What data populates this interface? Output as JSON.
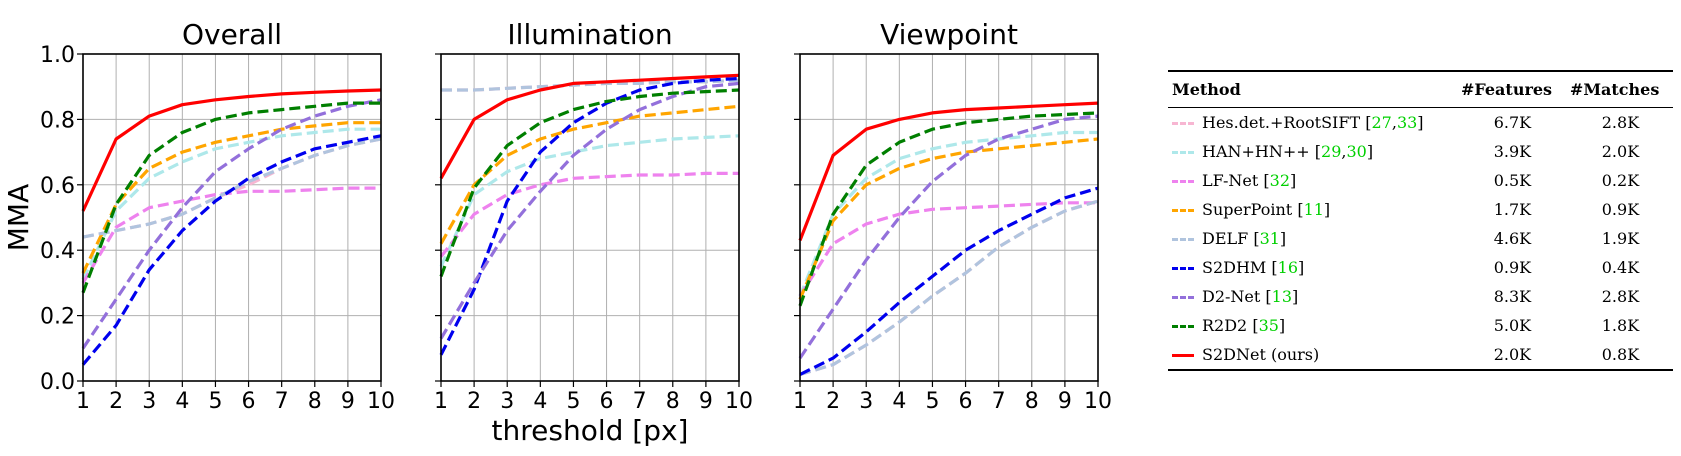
{
  "chart_data": [
    {
      "type": "line",
      "title": "Overall",
      "x": [
        1,
        2,
        3,
        4,
        5,
        6,
        7,
        8,
        9,
        10
      ],
      "xlim": [
        1,
        10
      ],
      "ylim": [
        0.0,
        1.0
      ],
      "ylabel": "MMA",
      "xlabel": "",
      "grid": true,
      "xticks": [
        "1",
        "2",
        "3",
        "4",
        "5",
        "6",
        "7",
        "8",
        "9",
        "10"
      ],
      "yticks": [
        "0.0",
        "0.2",
        "0.4",
        "0.6",
        "0.8",
        "1.0"
      ],
      "series": [
        {
          "name": "Hes.det.+RootSIFT",
          "color": "#f7b6d2",
          "dashed": true,
          "values": [
            0.44,
            0.46,
            0.48,
            0.51,
            0.56,
            0.6,
            0.65,
            0.69,
            0.72,
            0.74
          ]
        },
        {
          "name": "HAN+HN++",
          "color": "#aee8ea",
          "dashed": true,
          "values": [
            0.31,
            0.52,
            0.62,
            0.67,
            0.71,
            0.73,
            0.75,
            0.76,
            0.77,
            0.77
          ]
        },
        {
          "name": "LF-Net",
          "color": "#ee82ee",
          "dashed": true,
          "values": [
            0.3,
            0.47,
            0.53,
            0.55,
            0.57,
            0.58,
            0.58,
            0.585,
            0.59,
            0.59
          ]
        },
        {
          "name": "SuperPoint",
          "color": "#ffa500",
          "dashed": true,
          "values": [
            0.33,
            0.54,
            0.65,
            0.7,
            0.73,
            0.75,
            0.77,
            0.78,
            0.79,
            0.79
          ]
        },
        {
          "name": "DELF",
          "color": "#b0c4de",
          "dashed": true,
          "values": [
            0.44,
            0.46,
            0.48,
            0.51,
            0.56,
            0.61,
            0.65,
            0.69,
            0.72,
            0.74
          ]
        },
        {
          "name": "S2DHM",
          "color": "#0000ee",
          "dashed": true,
          "values": [
            0.05,
            0.17,
            0.34,
            0.46,
            0.55,
            0.62,
            0.67,
            0.71,
            0.73,
            0.75
          ]
        },
        {
          "name": "D2-Net",
          "color": "#9370db",
          "dashed": true,
          "values": [
            0.1,
            0.25,
            0.4,
            0.53,
            0.64,
            0.71,
            0.77,
            0.81,
            0.84,
            0.86
          ]
        },
        {
          "name": "R2D2",
          "color": "#007f00",
          "dashed": true,
          "values": [
            0.27,
            0.54,
            0.69,
            0.76,
            0.8,
            0.82,
            0.83,
            0.84,
            0.85,
            0.85
          ]
        },
        {
          "name": "S2DNet (ours)",
          "color": "#ff0000",
          "dashed": false,
          "values": [
            0.52,
            0.74,
            0.81,
            0.845,
            0.86,
            0.87,
            0.878,
            0.883,
            0.887,
            0.89
          ]
        }
      ]
    },
    {
      "type": "line",
      "title": "Illumination",
      "x": [
        1,
        2,
        3,
        4,
        5,
        6,
        7,
        8,
        9,
        10
      ],
      "xlim": [
        1,
        10
      ],
      "ylim": [
        0.0,
        1.0
      ],
      "ylabel": "",
      "xlabel": "threshold [px]",
      "grid": true,
      "xticks": [
        "1",
        "2",
        "3",
        "4",
        "5",
        "6",
        "7",
        "8",
        "9",
        "10"
      ],
      "series": [
        {
          "name": "Hes.det.+RootSIFT",
          "color": "#f7b6d2",
          "dashed": true,
          "values": [
            0.89,
            0.89,
            0.895,
            0.9,
            0.905,
            0.91,
            0.91,
            0.915,
            0.915,
            0.92
          ]
        },
        {
          "name": "HAN+HN++",
          "color": "#aee8ea",
          "dashed": true,
          "values": [
            0.35,
            0.57,
            0.64,
            0.68,
            0.7,
            0.72,
            0.73,
            0.74,
            0.745,
            0.75
          ]
        },
        {
          "name": "LF-Net",
          "color": "#ee82ee",
          "dashed": true,
          "values": [
            0.38,
            0.51,
            0.57,
            0.6,
            0.62,
            0.625,
            0.63,
            0.63,
            0.635,
            0.635
          ]
        },
        {
          "name": "SuperPoint",
          "color": "#ffa500",
          "dashed": true,
          "values": [
            0.42,
            0.6,
            0.69,
            0.74,
            0.77,
            0.79,
            0.81,
            0.82,
            0.83,
            0.84
          ]
        },
        {
          "name": "DELF",
          "color": "#b0c4de",
          "dashed": true,
          "values": [
            0.89,
            0.89,
            0.895,
            0.9,
            0.905,
            0.91,
            0.91,
            0.915,
            0.915,
            0.92
          ]
        },
        {
          "name": "S2DHM",
          "color": "#0000ee",
          "dashed": true,
          "values": [
            0.08,
            0.28,
            0.55,
            0.7,
            0.79,
            0.85,
            0.89,
            0.91,
            0.92,
            0.925
          ]
        },
        {
          "name": "D2-Net",
          "color": "#9370db",
          "dashed": true,
          "values": [
            0.13,
            0.3,
            0.46,
            0.58,
            0.69,
            0.77,
            0.83,
            0.87,
            0.9,
            0.91
          ]
        },
        {
          "name": "R2D2",
          "color": "#007f00",
          "dashed": true,
          "values": [
            0.32,
            0.59,
            0.72,
            0.79,
            0.83,
            0.855,
            0.87,
            0.88,
            0.885,
            0.89
          ]
        },
        {
          "name": "S2DNet (ours)",
          "color": "#ff0000",
          "dashed": false,
          "values": [
            0.62,
            0.8,
            0.86,
            0.89,
            0.91,
            0.915,
            0.92,
            0.925,
            0.93,
            0.935
          ]
        }
      ]
    },
    {
      "type": "line",
      "title": "Viewpoint",
      "x": [
        1,
        2,
        3,
        4,
        5,
        6,
        7,
        8,
        9,
        10
      ],
      "xlim": [
        1,
        10
      ],
      "ylim": [
        0.0,
        1.0
      ],
      "ylabel": "",
      "xlabel": "",
      "grid": true,
      "xticks": [
        "1",
        "2",
        "3",
        "4",
        "5",
        "6",
        "7",
        "8",
        "9",
        "10"
      ],
      "series": [
        {
          "name": "Hes.det.+RootSIFT",
          "color": "#f7b6d2",
          "dashed": true,
          "values": [
            0.02,
            0.05,
            0.11,
            0.18,
            0.26,
            0.33,
            0.41,
            0.47,
            0.52,
            0.55
          ]
        },
        {
          "name": "HAN+HN++",
          "color": "#aee8ea",
          "dashed": true,
          "values": [
            0.26,
            0.51,
            0.62,
            0.68,
            0.71,
            0.73,
            0.74,
            0.75,
            0.76,
            0.76
          ]
        },
        {
          "name": "LF-Net",
          "color": "#ee82ee",
          "dashed": true,
          "values": [
            0.26,
            0.42,
            0.48,
            0.51,
            0.525,
            0.53,
            0.535,
            0.54,
            0.545,
            0.545
          ]
        },
        {
          "name": "SuperPoint",
          "color": "#ffa500",
          "dashed": true,
          "values": [
            0.25,
            0.49,
            0.6,
            0.65,
            0.68,
            0.7,
            0.71,
            0.72,
            0.73,
            0.74
          ]
        },
        {
          "name": "DELF",
          "color": "#b0c4de",
          "dashed": true,
          "values": [
            0.02,
            0.05,
            0.11,
            0.18,
            0.26,
            0.33,
            0.41,
            0.47,
            0.52,
            0.55
          ]
        },
        {
          "name": "S2DHM",
          "color": "#0000ee",
          "dashed": true,
          "values": [
            0.02,
            0.07,
            0.15,
            0.24,
            0.32,
            0.4,
            0.46,
            0.51,
            0.56,
            0.59
          ]
        },
        {
          "name": "D2-Net",
          "color": "#9370db",
          "dashed": true,
          "values": [
            0.07,
            0.22,
            0.37,
            0.5,
            0.61,
            0.69,
            0.74,
            0.77,
            0.8,
            0.81
          ]
        },
        {
          "name": "R2D2",
          "color": "#007f00",
          "dashed": true,
          "values": [
            0.23,
            0.51,
            0.66,
            0.73,
            0.77,
            0.79,
            0.8,
            0.81,
            0.815,
            0.82
          ]
        },
        {
          "name": "S2DNet (ours)",
          "color": "#ff0000",
          "dashed": false,
          "values": [
            0.43,
            0.69,
            0.77,
            0.8,
            0.82,
            0.83,
            0.835,
            0.84,
            0.845,
            0.85
          ]
        }
      ]
    }
  ],
  "table": {
    "headers": {
      "method": "Method",
      "features": "#Features",
      "matches": "#Matches"
    },
    "rows": [
      {
        "method": "Hes.det.+RootSIFT",
        "cite_open": " [",
        "cite_a": "27",
        "cite_sep": ",",
        "cite_b": "33",
        "cite_close": "]",
        "features": "6.7K",
        "matches": "2.8K",
        "color": "#f7b6d2"
      },
      {
        "method": "HAN+HN++",
        "cite_open": " [",
        "cite_a": "29",
        "cite_sep": ",",
        "cite_b": "30",
        "cite_close": "]",
        "features": "3.9K",
        "matches": "2.0K",
        "color": "#aee8ea"
      },
      {
        "method": "LF-Net",
        "cite_open": " [",
        "cite_a": "32",
        "cite_sep": "",
        "cite_b": "",
        "cite_close": "]",
        "features": "0.5K",
        "matches": "0.2K",
        "color": "#ee82ee"
      },
      {
        "method": "SuperPoint",
        "cite_open": " [",
        "cite_a": "11",
        "cite_sep": "",
        "cite_b": "",
        "cite_close": "]",
        "features": "1.7K",
        "matches": "0.9K",
        "color": "#ffa500"
      },
      {
        "method": "DELF",
        "cite_open": " [",
        "cite_a": "31",
        "cite_sep": "",
        "cite_b": "",
        "cite_close": "]",
        "features": "4.6K",
        "matches": "1.9K",
        "color": "#b0c4de"
      },
      {
        "method": "S2DHM",
        "cite_open": " [",
        "cite_a": "16",
        "cite_sep": "",
        "cite_b": "",
        "cite_close": "]",
        "features": "0.9K",
        "matches": "0.4K",
        "color": "#0000ee"
      },
      {
        "method": "D2-Net",
        "cite_open": " [",
        "cite_a": "13",
        "cite_sep": "",
        "cite_b": "",
        "cite_close": "]",
        "features": "8.3K",
        "matches": "2.8K",
        "color": "#9370db"
      },
      {
        "method": "R2D2",
        "cite_open": " [",
        "cite_a": "35",
        "cite_sep": "",
        "cite_b": "",
        "cite_close": "]",
        "features": "5.0K",
        "matches": "1.8K",
        "color": "#007f00"
      },
      {
        "method": "S2DNet (ours)",
        "cite_open": "",
        "cite_a": "",
        "cite_sep": "",
        "cite_b": "",
        "cite_close": "",
        "features": "2.0K",
        "matches": "0.8K",
        "color": "#ff0000"
      }
    ]
  }
}
